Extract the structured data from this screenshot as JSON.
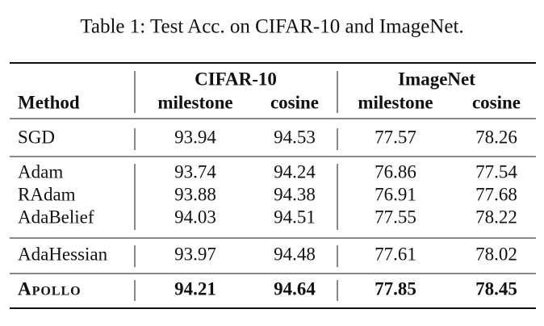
{
  "caption": "Table 1: Test Acc. on CIFAR-10 and ImageNet.",
  "table": {
    "groups": [
      "CIFAR-10",
      "ImageNet"
    ],
    "columns": [
      "Method",
      "milestone",
      "cosine",
      "milestone",
      "cosine"
    ],
    "sections": [
      [
        [
          "SGD",
          93.94,
          94.53,
          77.57,
          78.26
        ]
      ],
      [
        [
          "Adam",
          93.74,
          94.24,
          76.86,
          77.54
        ],
        [
          "RAdam",
          93.88,
          94.38,
          76.91,
          77.68
        ],
        [
          "AdaBelief",
          94.03,
          94.51,
          77.55,
          78.22
        ]
      ],
      [
        [
          "AdaHessian",
          93.97,
          94.48,
          77.61,
          78.02
        ]
      ],
      [
        [
          "Apollo",
          94.21,
          94.64,
          77.85,
          78.45
        ]
      ]
    ]
  }
}
